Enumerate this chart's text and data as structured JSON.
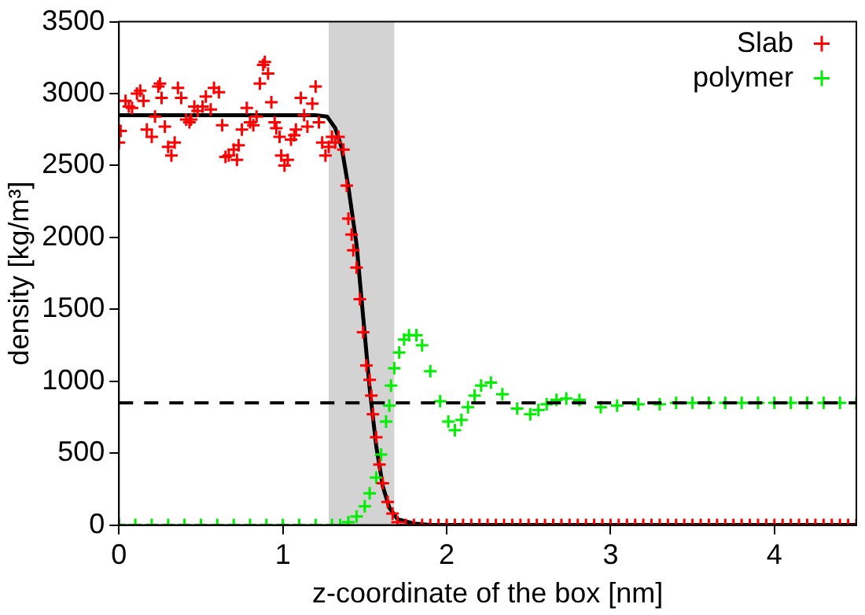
{
  "chart_data": {
    "type": "scatter",
    "xlabel": "z-coordinate of the box [nm]",
    "ylabel": "density [kg/m³]",
    "xlim": [
      0,
      4.5
    ],
    "xticks": [
      0,
      1,
      2,
      3,
      4
    ],
    "ylim": [
      0,
      3500
    ],
    "yticks": [
      0,
      500,
      1000,
      1500,
      2000,
      2500,
      3000,
      3500
    ],
    "legend": "top right",
    "grid": false,
    "bands": [
      {
        "axis": "x",
        "from": 1.28,
        "to": 1.68,
        "color": "#d3d3d3"
      }
    ],
    "ref_lines": [
      {
        "axis": "y",
        "value": 850,
        "color": "#000000",
        "line_style": "dashed"
      }
    ],
    "series": [
      {
        "name": "Slab",
        "color": "#ff0000",
        "marker": "cross",
        "x": [
          0,
          0.01,
          0.04,
          0.06,
          0.08,
          0.11,
          0.13,
          0.15,
          0.17,
          0.2,
          0.22,
          0.24,
          0.25,
          0.26,
          0.28,
          0.3,
          0.32,
          0.34,
          0.36,
          0.38,
          0.41,
          0.43,
          0.44,
          0.46,
          0.48,
          0.51,
          0.53,
          0.56,
          0.58,
          0.61,
          0.63,
          0.65,
          0.67,
          0.7,
          0.72,
          0.73,
          0.75,
          0.78,
          0.8,
          0.82,
          0.84,
          0.86,
          0.88,
          0.89,
          0.91,
          0.93,
          0.95,
          0.96,
          0.98,
          0.99,
          1.01,
          1.03,
          1.05,
          1.07,
          1.08,
          1.11,
          1.13,
          1.15,
          1.18,
          1.2,
          1.22,
          1.24,
          1.26,
          1.28,
          1.3,
          1.32,
          1.34,
          1.37,
          1.39,
          1.4,
          1.42,
          1.43,
          1.45,
          1.47,
          1.49,
          1.51,
          1.53,
          1.54,
          1.55,
          1.57,
          1.59,
          1.61,
          1.64,
          1.67,
          1.7,
          1.75,
          1.8,
          1.85,
          1.9,
          1.95,
          2,
          2.05,
          2.1,
          2.15,
          2.2,
          2.25,
          2.3,
          2.35,
          2.4,
          2.45,
          2.5,
          2.55,
          2.6,
          2.65,
          2.7,
          2.75,
          2.8,
          2.85,
          2.9,
          2.95,
          3,
          3.05,
          3.1,
          3.15,
          3.2,
          3.25,
          3.3,
          3.35,
          3.4,
          3.45,
          3.5,
          3.55,
          3.6,
          3.65,
          3.7,
          3.75,
          3.8,
          3.85,
          3.9,
          3.95,
          4,
          4.05,
          4.1,
          4.15,
          4.2,
          4.25,
          4.3,
          4.35,
          4.4,
          4.45,
          4.5
        ],
        "values": [
          2660,
          2740,
          2950,
          2910,
          2900,
          3000,
          3020,
          2950,
          2750,
          2700,
          2840,
          3050,
          3070,
          2970,
          2770,
          2630,
          2570,
          2660,
          3040,
          2970,
          2820,
          2800,
          2820,
          2910,
          2880,
          2910,
          2980,
          2890,
          3040,
          3010,
          2780,
          2560,
          2570,
          2610,
          2540,
          2640,
          2750,
          2900,
          2800,
          2780,
          2840,
          3070,
          3200,
          3220,
          3140,
          2940,
          2800,
          2760,
          2700,
          2570,
          2500,
          2540,
          2680,
          2710,
          2750,
          2970,
          2850,
          2770,
          2930,
          3050,
          2800,
          2660,
          2570,
          2630,
          2700,
          2660,
          2700,
          2610,
          2360,
          2130,
          2020,
          1910,
          1790,
          1570,
          1340,
          1110,
          1010,
          900,
          770,
          610,
          420,
          290,
          160,
          80,
          20,
          0,
          0,
          0,
          0,
          0,
          0,
          0,
          0,
          0,
          0,
          0,
          0,
          0,
          0,
          0,
          0,
          0,
          0,
          0,
          0,
          0,
          0,
          0,
          0,
          0,
          0,
          0,
          0,
          0,
          0,
          0,
          0,
          0,
          0,
          0,
          0,
          0,
          0,
          0,
          0,
          0,
          0,
          0,
          0,
          0,
          0,
          0,
          0,
          0,
          0,
          0,
          0,
          0,
          0,
          0,
          0
        ]
      },
      {
        "name": "polymer",
        "color": "#00ee00",
        "marker": "cross",
        "x": [
          0,
          0.1,
          0.2,
          0.3,
          0.4,
          0.5,
          0.6,
          0.7,
          0.8,
          0.9,
          1,
          1.1,
          1.2,
          1.3,
          1.35,
          1.4,
          1.45,
          1.5,
          1.53,
          1.57,
          1.6,
          1.63,
          1.65,
          1.66,
          1.68,
          1.71,
          1.74,
          1.77,
          1.815,
          1.85,
          1.9,
          1.96,
          2.01,
          2.05,
          2.09,
          2.13,
          2.17,
          2.21,
          2.27,
          2.34,
          2.43,
          2.51,
          2.56,
          2.61,
          2.67,
          2.73,
          2.81,
          2.94,
          3.04,
          3.17,
          3.3,
          3.4,
          3.5,
          3.6,
          3.7,
          3.8,
          3.9,
          4,
          4.1,
          4.2,
          4.3,
          4.4,
          4.5
        ],
        "values": [
          0,
          0,
          0,
          0,
          0,
          0,
          0,
          0,
          0,
          0,
          0,
          0,
          0,
          0,
          0,
          20,
          60,
          130,
          220,
          330,
          490,
          720,
          830,
          970,
          1090,
          1200,
          1290,
          1320,
          1320,
          1250,
          1070,
          860,
          720,
          660,
          730,
          820,
          900,
          970,
          990,
          910,
          810,
          770,
          800,
          840,
          870,
          880,
          870,
          820,
          830,
          840,
          840,
          850,
          850,
          850,
          850,
          850,
          850,
          850,
          850,
          850,
          850,
          850,
          850
        ]
      },
      {
        "type": "line",
        "color": "#000000",
        "marker": "none",
        "x": [
          0,
          0.5,
          1,
          1.2,
          1.27,
          1.32,
          1.36,
          1.4,
          1.45,
          1.49,
          1.53,
          1.57,
          1.61,
          1.65,
          1.7,
          1.8,
          1.9,
          4.5
        ],
        "values": [
          2850,
          2850,
          2850,
          2850,
          2840,
          2760,
          2620,
          2350,
          1950,
          1450,
          950,
          550,
          270,
          120,
          40,
          10,
          0,
          0
        ]
      }
    ]
  }
}
